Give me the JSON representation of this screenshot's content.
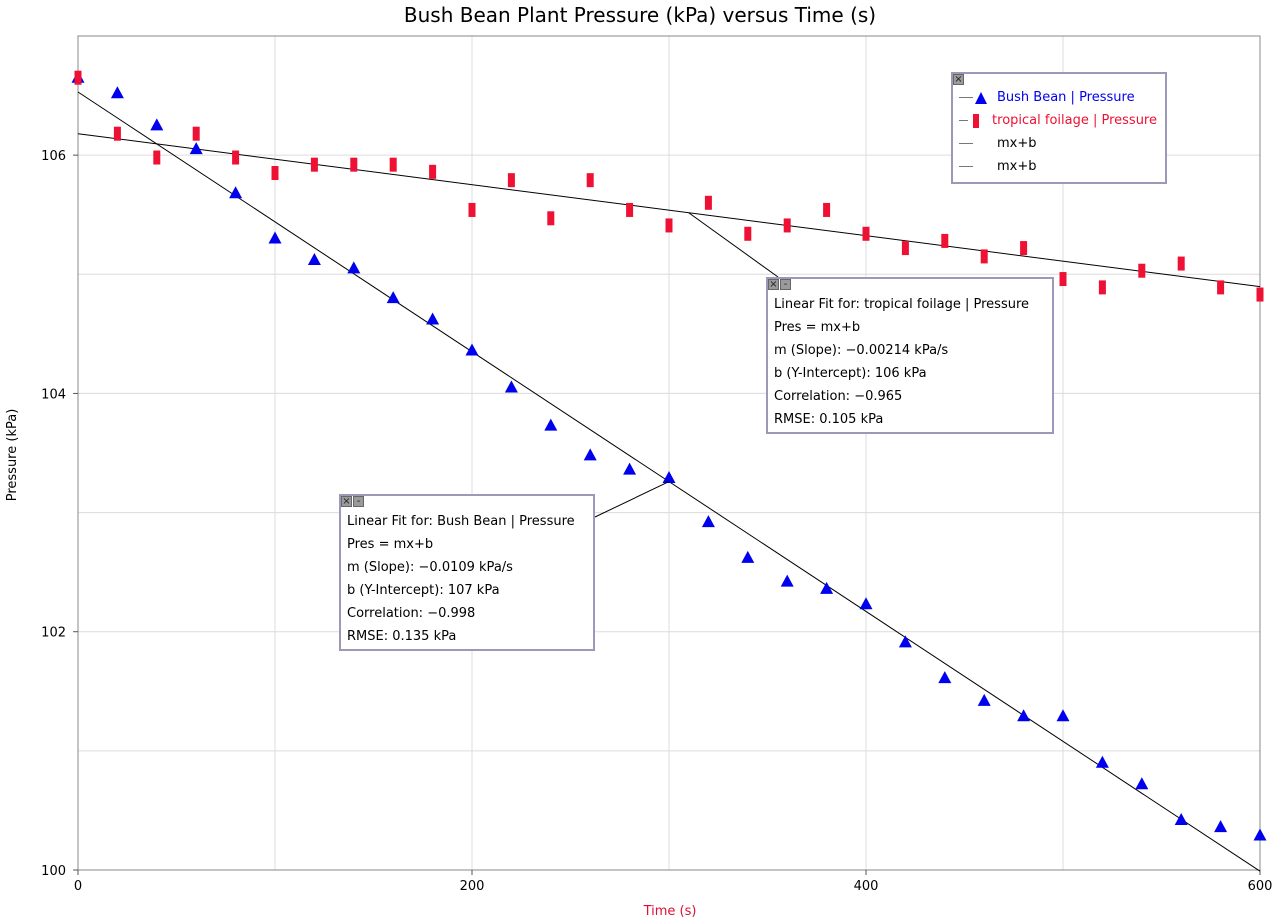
{
  "chart_data": {
    "type": "scatter",
    "title": "Bush Bean Plant Pressure (kPa) versus Time (s)",
    "xlabel": "Time (s)",
    "ylabel": "Pressure (kPa)",
    "xlim": [
      0,
      600
    ],
    "ylim": [
      100,
      107
    ],
    "x_ticks": [
      0,
      200,
      400,
      600
    ],
    "y_ticks": [
      100,
      102,
      104,
      106
    ],
    "grid": true,
    "legend_position": "top-right",
    "colors": {
      "bush_bean": "#0000ee",
      "tropical": "#ee1133",
      "fit": "#000000",
      "xlabel": "#dd1133"
    },
    "series": [
      {
        "name": "Bush Bean | Pressure",
        "marker": "triangle",
        "x": [
          0,
          20,
          40,
          60,
          80,
          100,
          120,
          140,
          160,
          180,
          200,
          220,
          240,
          260,
          280,
          300,
          320,
          340,
          360,
          380,
          400,
          420,
          440,
          460,
          480,
          500,
          520,
          540,
          560,
          580,
          600
        ],
        "y": [
          106.65,
          106.52,
          106.25,
          106.05,
          105.68,
          105.3,
          105.12,
          105.05,
          104.8,
          104.62,
          104.36,
          104.05,
          103.73,
          103.48,
          103.36,
          103.29,
          102.92,
          102.62,
          102.42,
          102.36,
          102.23,
          101.91,
          101.61,
          101.42,
          101.29,
          101.29,
          100.9,
          100.72,
          100.42,
          100.36,
          100.29
        ]
      },
      {
        "name": "tropical foilage | Pressure",
        "marker": "bar",
        "x": [
          0,
          20,
          40,
          60,
          80,
          100,
          120,
          140,
          160,
          180,
          200,
          220,
          240,
          260,
          280,
          300,
          320,
          340,
          360,
          380,
          400,
          420,
          440,
          460,
          480,
          500,
          520,
          540,
          560,
          580,
          600
        ],
        "y": [
          106.65,
          106.18,
          105.98,
          106.18,
          105.98,
          105.85,
          105.92,
          105.92,
          105.92,
          105.86,
          105.54,
          105.79,
          105.47,
          105.79,
          105.54,
          105.41,
          105.6,
          105.34,
          105.41,
          105.54,
          105.34,
          105.22,
          105.28,
          105.15,
          105.22,
          104.96,
          104.89,
          105.03,
          105.09,
          104.89,
          104.83
        ]
      }
    ],
    "fits": [
      {
        "series": "Bush Bean | Pressure",
        "legend": "mx+b",
        "m": -0.0109,
        "b": 106.53,
        "anchor_x": 300,
        "box": [
          "Linear Fit for: Bush Bean | Pressure",
          "Pres = mx+b",
          "m (Slope): −0.0109 kPa/s",
          "b (Y-Intercept): 107 kPa",
          "Correlation: −0.998",
          "RMSE: 0.135 kPa"
        ]
      },
      {
        "series": "tropical foilage | Pressure",
        "legend": "mx+b",
        "m": -0.00214,
        "b": 106.18,
        "anchor_x": 310,
        "box": [
          "Linear Fit for: tropical foilage | Pressure",
          "Pres = mx+b",
          "m (Slope): −0.00214 kPa/s",
          "b (Y-Intercept): 106 kPa",
          "Correlation: −0.965",
          "RMSE: 0.105 kPa"
        ]
      }
    ]
  },
  "controls": {
    "close_glyph": "×",
    "minimize_glyph": "-"
  }
}
